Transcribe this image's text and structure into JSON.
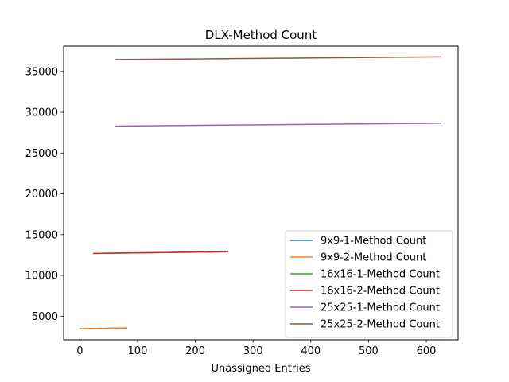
{
  "chart_data": {
    "type": "line",
    "title": "DLX-Method Count",
    "xlabel": "Unassigned Entries",
    "ylabel": "",
    "xlim": [
      -28,
      655
    ],
    "ylim": [
      2100,
      38100
    ],
    "xticks": [
      0,
      100,
      200,
      300,
      400,
      500,
      600
    ],
    "yticks": [
      5000,
      10000,
      15000,
      20000,
      25000,
      30000,
      35000
    ],
    "grid": false,
    "legend_position": "lower-right",
    "series": [
      {
        "name": "9x9-1-Method Count",
        "color": "#1f77b4",
        "x": [
          0,
          81
        ],
        "y": [
          3450,
          3550
        ]
      },
      {
        "name": "9x9-2-Method Count",
        "color": "#ff7f0e",
        "x": [
          0,
          81
        ],
        "y": [
          3450,
          3550
        ]
      },
      {
        "name": "16x16-1-Method Count",
        "color": "#2ca02c",
        "x": [
          24,
          256
        ],
        "y": [
          12700,
          12900
        ]
      },
      {
        "name": "16x16-2-Method Count",
        "color": "#d62728",
        "x": [
          24,
          256
        ],
        "y": [
          12700,
          12900
        ]
      },
      {
        "name": "25x25-1-Method Count",
        "color": "#9467bd",
        "x": [
          62,
          625
        ],
        "y": [
          28300,
          28650
        ]
      },
      {
        "name": "25x25-2-Method Count",
        "color": "#8c564b",
        "x": [
          62,
          625
        ],
        "y": [
          36450,
          36800
        ]
      }
    ]
  }
}
